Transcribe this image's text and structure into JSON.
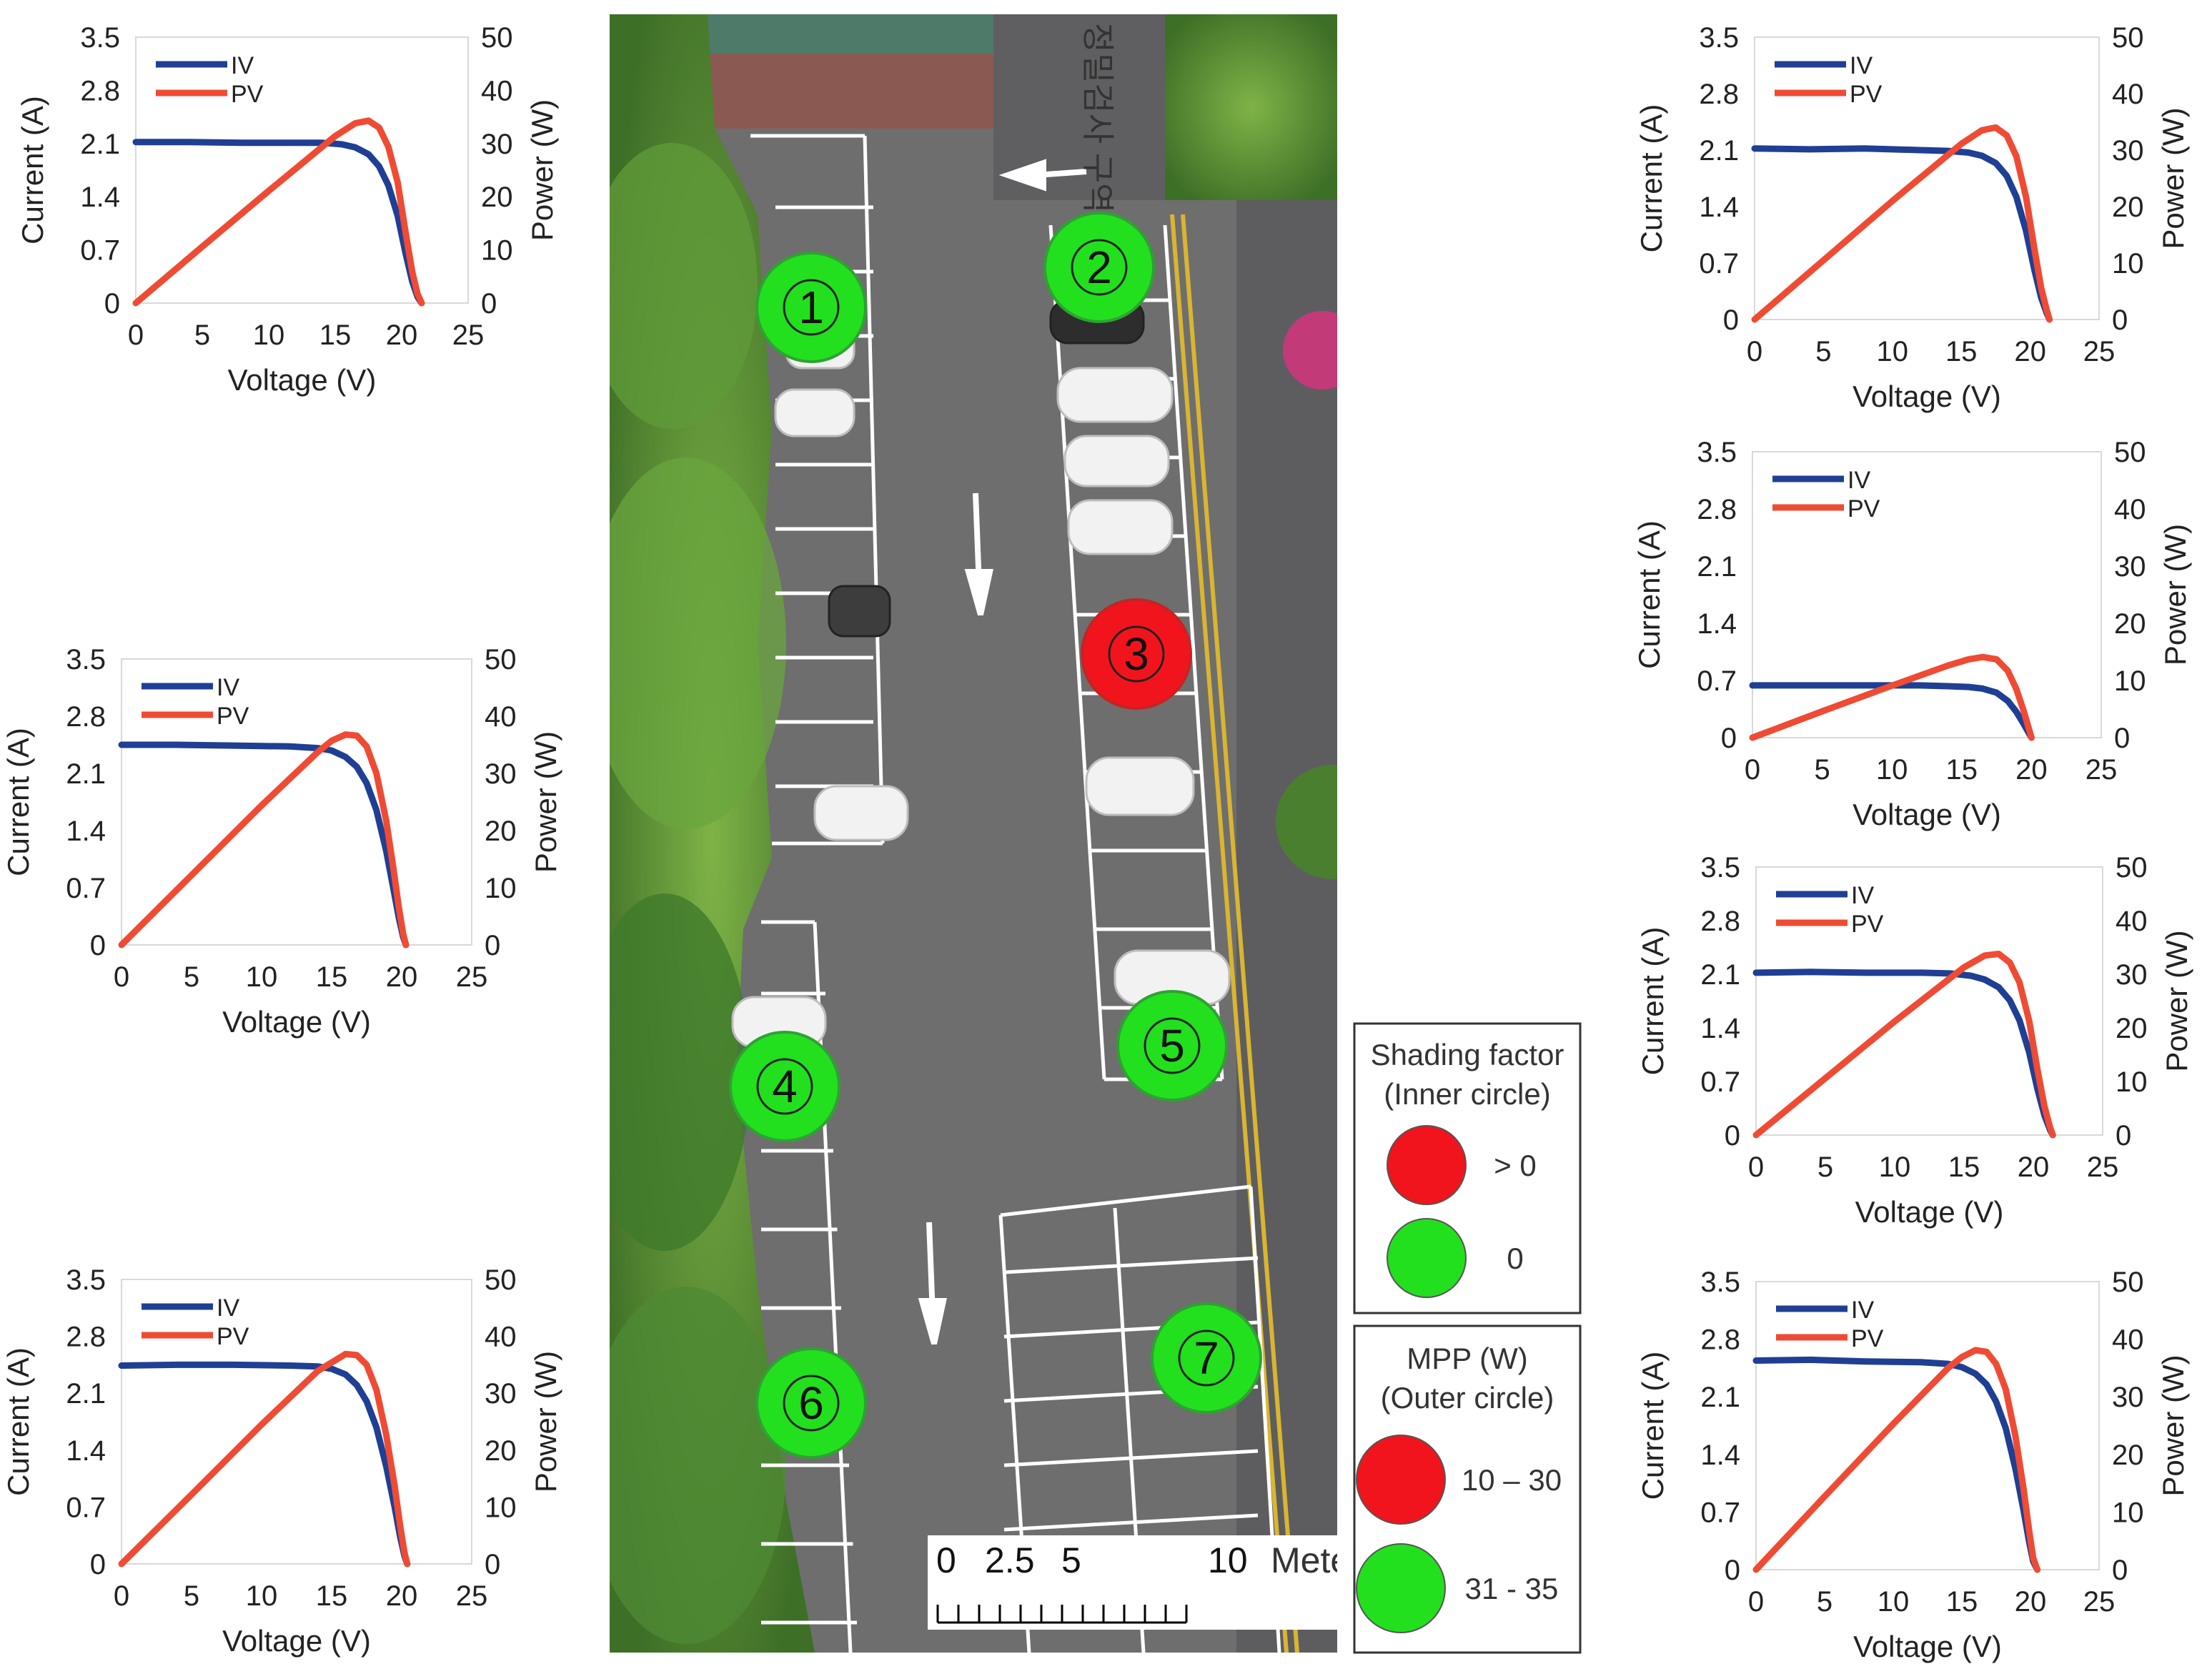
{
  "colors": {
    "iv": "#1f3f94",
    "pv": "#ef4b34",
    "green": "#22e01e",
    "red": "#f2141c",
    "dark_green_ring": "#2fa232",
    "dark_red_ring": "#c42424",
    "asphalt": "#6b6b6b",
    "trees": "#4c8a2e"
  },
  "aerial": {
    "markers": [
      {
        "id": "1",
        "outer": "green",
        "inner": "green"
      },
      {
        "id": "2",
        "outer": "green",
        "inner": "green"
      },
      {
        "id": "3",
        "outer": "red",
        "inner": "red"
      },
      {
        "id": "4",
        "outer": "green",
        "inner": "green"
      },
      {
        "id": "5",
        "outer": "green",
        "inner": "green"
      },
      {
        "id": "6",
        "outer": "green",
        "inner": "green"
      },
      {
        "id": "7",
        "outer": "green",
        "inner": "green"
      }
    ],
    "scale_bar": {
      "ticks": [
        "0",
        "2.5",
        "5",
        "10"
      ],
      "units": "Meters"
    },
    "road_text": "정밀검사 구역"
  },
  "legend": {
    "shading": {
      "title1": "Shading factor",
      "title2": "(Inner circle)",
      "items": [
        {
          "color": "red",
          "label": "> 0"
        },
        {
          "color": "green",
          "label": "0"
        }
      ]
    },
    "mpp": {
      "title1": "MPP (W)",
      "title2": "(Outer circle)",
      "items": [
        {
          "color": "red",
          "label": "10 – 30"
        },
        {
          "color": "green",
          "label": "31 - 35"
        }
      ]
    }
  },
  "chart_data": [
    {
      "type": "line",
      "panel": "top-left",
      "xlabel": "Voltage (V)",
      "ylabel": "Current (A)",
      "y2label": "Power (W)",
      "xlim": [
        0,
        25
      ],
      "ylim": [
        0,
        3.5
      ],
      "y2lim": [
        0,
        50
      ],
      "xticks": [
        "0",
        "5",
        "10",
        "15",
        "20",
        "25"
      ],
      "yticks": [
        "0",
        "0.7",
        "1.4",
        "2.1",
        "2.8",
        "3.5"
      ],
      "y2ticks": [
        "0",
        "10",
        "20",
        "30",
        "40",
        "50"
      ],
      "legend": [
        "IV",
        "PV"
      ],
      "series": [
        {
          "name": "IV",
          "axis": "left",
          "x": [
            0,
            4,
            8,
            12,
            14,
            15.5,
            16.5,
            17.5,
            18.3,
            19,
            19.7,
            20.3,
            20.8,
            21.2,
            21.5
          ],
          "y": [
            2.12,
            2.12,
            2.11,
            2.11,
            2.11,
            2.09,
            2.05,
            1.96,
            1.8,
            1.55,
            1.15,
            0.65,
            0.28,
            0.08,
            0.0
          ]
        },
        {
          "name": "PV",
          "axis": "right",
          "x": [
            0,
            5,
            10,
            15,
            16.5,
            17.5,
            18.3,
            19,
            19.7,
            20.3,
            20.8,
            21.2,
            21.5
          ],
          "y": [
            0,
            10.6,
            21.1,
            31.4,
            33.8,
            34.3,
            33.0,
            29.4,
            22.7,
            13.2,
            5.8,
            1.7,
            0
          ]
        }
      ]
    },
    {
      "type": "line",
      "panel": "middle-left",
      "xlabel": "Voltage (V)",
      "ylabel": "Current (A)",
      "y2label": "Power (W)",
      "xlim": [
        0,
        25
      ],
      "ylim": [
        0,
        3.5
      ],
      "y2lim": [
        0,
        50
      ],
      "xticks": [
        "0",
        "5",
        "10",
        "15",
        "20",
        "25"
      ],
      "yticks": [
        "0",
        "0.7",
        "1.4",
        "2.1",
        "2.8",
        "3.5"
      ],
      "y2ticks": [
        "0",
        "10",
        "20",
        "30",
        "40",
        "50"
      ],
      "legend": [
        "IV",
        "PV"
      ],
      "series": [
        {
          "name": "IV",
          "axis": "left",
          "x": [
            0,
            4,
            8,
            12,
            14,
            15,
            16,
            16.8,
            17.5,
            18.2,
            18.9,
            19.4,
            19.8,
            20.1,
            20.3
          ],
          "y": [
            2.45,
            2.45,
            2.44,
            2.43,
            2.41,
            2.38,
            2.3,
            2.18,
            1.98,
            1.65,
            1.15,
            0.7,
            0.33,
            0.1,
            0.0
          ]
        },
        {
          "name": "PV",
          "axis": "right",
          "x": [
            0,
            5,
            10,
            14,
            15,
            16,
            16.8,
            17.5,
            18.2,
            18.9,
            19.4,
            19.8,
            20.1,
            20.3
          ],
          "y": [
            0,
            12.2,
            24.4,
            33.7,
            35.7,
            36.8,
            36.6,
            34.7,
            30.0,
            21.7,
            13.6,
            6.5,
            2.0,
            0
          ]
        }
      ]
    },
    {
      "type": "line",
      "panel": "bottom-left",
      "xlabel": "Voltage (V)",
      "ylabel": "Current (A)",
      "y2label": "Power (W)",
      "xlim": [
        0,
        25
      ],
      "ylim": [
        0,
        3.5
      ],
      "y2lim": [
        0,
        50
      ],
      "xticks": [
        "0",
        "5",
        "10",
        "15",
        "20",
        "25"
      ],
      "yticks": [
        "0",
        "0.7",
        "1.4",
        "2.1",
        "2.8",
        "3.5"
      ],
      "y2ticks": [
        "0",
        "10",
        "20",
        "30",
        "40",
        "50"
      ],
      "legend": [
        "IV",
        "PV"
      ],
      "series": [
        {
          "name": "IV",
          "axis": "left",
          "x": [
            0,
            4,
            8,
            12,
            14,
            15,
            16,
            16.8,
            17.5,
            18.2,
            18.9,
            19.5,
            19.9,
            20.2,
            20.4
          ],
          "y": [
            2.44,
            2.45,
            2.45,
            2.44,
            2.43,
            2.4,
            2.33,
            2.2,
            2.0,
            1.68,
            1.2,
            0.7,
            0.33,
            0.1,
            0.0
          ]
        },
        {
          "name": "PV",
          "axis": "right",
          "x": [
            0,
            5,
            10,
            14,
            15,
            16,
            16.8,
            17.5,
            18.2,
            18.9,
            19.5,
            19.9,
            20.2,
            20.4
          ],
          "y": [
            0,
            12.2,
            24.5,
            33.9,
            35.4,
            36.9,
            36.7,
            35.0,
            30.6,
            22.7,
            13.7,
            6.6,
            2.0,
            0
          ]
        }
      ]
    },
    {
      "type": "line",
      "panel": "top-right",
      "xlabel": "Voltage (V)",
      "ylabel": "Current (A)",
      "y2label": "Power (W)",
      "xlim": [
        0,
        25
      ],
      "ylim": [
        0,
        3.5
      ],
      "y2lim": [
        0,
        50
      ],
      "xticks": [
        "0",
        "5",
        "10",
        "15",
        "20",
        "25"
      ],
      "yticks": [
        "0",
        "0.7",
        "1.4",
        "2.1",
        "2.8",
        "3.5"
      ],
      "y2ticks": [
        "0",
        "10",
        "20",
        "30",
        "40",
        "50"
      ],
      "legend": [
        "IV",
        "PV"
      ],
      "series": [
        {
          "name": "IV",
          "axis": "left",
          "x": [
            0,
            4,
            8,
            12,
            14,
            15.5,
            16.5,
            17.5,
            18.3,
            19,
            19.7,
            20.3,
            20.8,
            21.2,
            21.4
          ],
          "y": [
            2.12,
            2.11,
            2.12,
            2.1,
            2.09,
            2.07,
            2.03,
            1.94,
            1.78,
            1.52,
            1.1,
            0.62,
            0.27,
            0.08,
            0.0
          ]
        },
        {
          "name": "PV",
          "axis": "right",
          "x": [
            0,
            5,
            10,
            15,
            16.5,
            17.5,
            18.3,
            19,
            19.7,
            20.3,
            20.8,
            21.2,
            21.4
          ],
          "y": [
            0,
            10.5,
            21.0,
            31.1,
            33.5,
            34.0,
            32.6,
            28.9,
            21.7,
            12.6,
            5.6,
            1.7,
            0
          ]
        }
      ]
    },
    {
      "type": "line",
      "panel": "second-right",
      "xlabel": "Voltage (V)",
      "ylabel": "Current (A)",
      "y2label": "Power (W)",
      "xlim": [
        0,
        25
      ],
      "ylim": [
        0,
        3.5
      ],
      "y2lim": [
        0,
        50
      ],
      "xticks": [
        "0",
        "5",
        "10",
        "15",
        "20",
        "25"
      ],
      "yticks": [
        "0",
        "0.7",
        "1.4",
        "2.1",
        "2.8",
        "3.5"
      ],
      "y2ticks": [
        "0",
        "10",
        "20",
        "30",
        "40",
        "50"
      ],
      "legend": [
        "IV",
        "PV"
      ],
      "series": [
        {
          "name": "IV",
          "axis": "left",
          "x": [
            0,
            4,
            8,
            12,
            14,
            15.5,
            16.5,
            17.5,
            18.3,
            18.9,
            19.4,
            19.8,
            20.0
          ],
          "y": [
            0.64,
            0.64,
            0.64,
            0.64,
            0.63,
            0.62,
            0.6,
            0.55,
            0.45,
            0.32,
            0.18,
            0.06,
            0.0
          ]
        },
        {
          "name": "PV",
          "axis": "right",
          "x": [
            0,
            5,
            10,
            14,
            15.5,
            16.5,
            17.5,
            18.3,
            18.9,
            19.4,
            19.8,
            20.0
          ],
          "y": [
            0,
            4.6,
            9.1,
            12.6,
            13.7,
            14.1,
            13.7,
            11.7,
            8.6,
            5.0,
            1.7,
            0
          ]
        }
      ]
    },
    {
      "type": "line",
      "panel": "third-right",
      "xlabel": "Voltage (V)",
      "ylabel": "Current (A)",
      "y2label": "Power (W)",
      "xlim": [
        0,
        25
      ],
      "ylim": [
        0,
        3.5
      ],
      "y2lim": [
        0,
        50
      ],
      "xticks": [
        "0",
        "5",
        "10",
        "15",
        "20",
        "25"
      ],
      "yticks": [
        "0",
        "0.7",
        "1.4",
        "2.1",
        "2.8",
        "3.5"
      ],
      "y2ticks": [
        "0",
        "10",
        "20",
        "30",
        "40",
        "50"
      ],
      "legend": [
        "IV",
        "PV"
      ],
      "series": [
        {
          "name": "IV",
          "axis": "left",
          "x": [
            0,
            4,
            8,
            12,
            14,
            15.5,
            16.5,
            17.5,
            18.3,
            19,
            19.7,
            20.3,
            20.8,
            21.2,
            21.4
          ],
          "y": [
            2.12,
            2.13,
            2.12,
            2.12,
            2.11,
            2.08,
            2.03,
            1.93,
            1.76,
            1.5,
            1.08,
            0.6,
            0.26,
            0.07,
            0.0
          ]
        },
        {
          "name": "PV",
          "axis": "right",
          "x": [
            0,
            5,
            10,
            15,
            16.5,
            17.5,
            18.3,
            19,
            19.7,
            20.3,
            20.8,
            21.2,
            21.4
          ],
          "y": [
            0,
            10.6,
            21.2,
            31.3,
            33.5,
            33.8,
            32.2,
            28.5,
            21.3,
            12.2,
            5.4,
            1.5,
            0
          ]
        }
      ]
    },
    {
      "type": "line",
      "panel": "bottom-right",
      "xlabel": "Voltage (V)",
      "ylabel": "Current (A)",
      "y2label": "Power (W)",
      "xlim": [
        0,
        25
      ],
      "ylim": [
        0,
        3.5
      ],
      "y2lim": [
        0,
        50
      ],
      "xticks": [
        "0",
        "5",
        "10",
        "15",
        "20",
        "25"
      ],
      "yticks": [
        "0",
        "0.7",
        "1.4",
        "2.1",
        "2.8",
        "3.5"
      ],
      "y2ticks": [
        "0",
        "10",
        "20",
        "30",
        "40",
        "50"
      ],
      "legend": [
        "IV",
        "PV"
      ],
      "series": [
        {
          "name": "IV",
          "axis": "left",
          "x": [
            0,
            4,
            8,
            12,
            14,
            15,
            16,
            16.8,
            17.5,
            18.2,
            18.9,
            19.5,
            19.9,
            20.2,
            20.5
          ],
          "y": [
            2.54,
            2.55,
            2.53,
            2.52,
            2.5,
            2.46,
            2.38,
            2.25,
            2.04,
            1.72,
            1.23,
            0.72,
            0.34,
            0.1,
            0.0
          ]
        },
        {
          "name": "PV",
          "axis": "right",
          "x": [
            0,
            5,
            10,
            14,
            15,
            16,
            16.8,
            17.5,
            18.2,
            18.9,
            19.5,
            19.9,
            20.2,
            20.5
          ],
          "y": [
            0,
            12.7,
            25.3,
            35.0,
            36.9,
            38.1,
            37.8,
            35.7,
            31.3,
            23.2,
            14.0,
            6.8,
            2.0,
            0
          ]
        }
      ]
    }
  ]
}
